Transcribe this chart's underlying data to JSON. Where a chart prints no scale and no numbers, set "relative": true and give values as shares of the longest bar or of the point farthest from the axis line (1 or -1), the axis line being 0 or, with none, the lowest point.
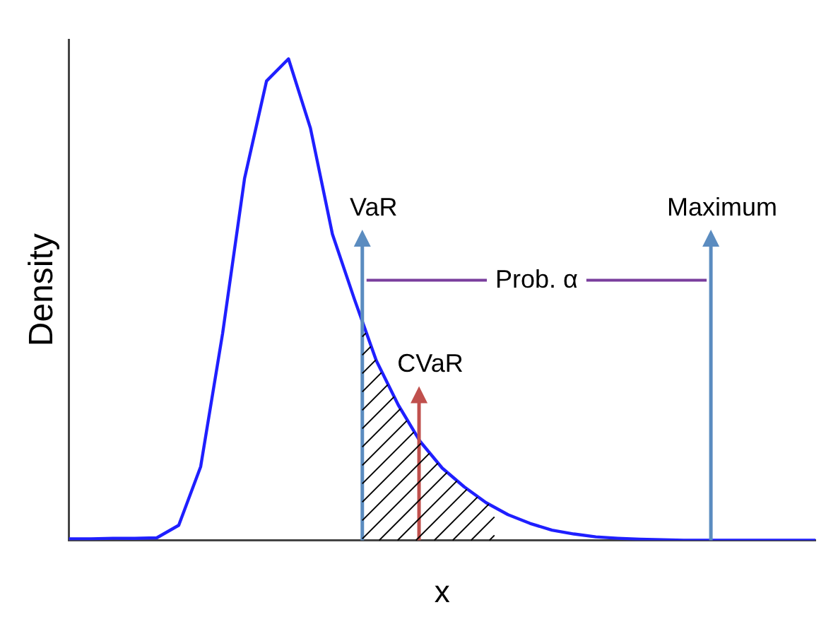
{
  "chart_data": {
    "type": "line",
    "xlabel": "x",
    "ylabel": "Density",
    "relative": true,
    "grid": false,
    "legend": false,
    "marker": "none",
    "line_style": "solid",
    "categories": [
      null,
      null,
      null,
      null,
      null,
      null,
      null,
      null,
      null,
      null,
      null,
      null,
      null,
      null,
      null,
      null,
      null,
      null,
      null,
      null,
      null,
      null,
      null,
      null,
      null,
      null,
      null,
      null,
      null,
      null,
      null,
      null,
      null,
      null,
      null
    ],
    "series": [
      {
        "color": "#1f1fff",
        "values": [
          0.003,
          0.003,
          0.004,
          0.004,
          0.005,
          0.031,
          0.153,
          0.43,
          0.752,
          0.954,
          1,
          0.856,
          0.636,
          0.501,
          0.373,
          0.281,
          0.205,
          0.15,
          0.111,
          0.078,
          0.053,
          0.035,
          0.021,
          0.013,
          0.007,
          0.004,
          0.002,
          0.001,
          0,
          0,
          0,
          0,
          0,
          0,
          0
        ]
      }
    ],
    "annotations": [
      "VaR",
      "CVaR",
      "Maximum",
      "Prob. α"
    ]
  }
}
